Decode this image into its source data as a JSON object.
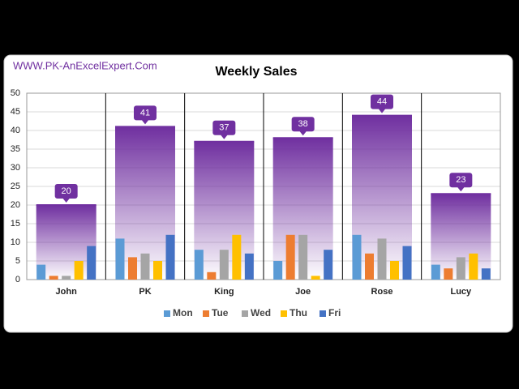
{
  "chart_data": {
    "type": "bar",
    "title": "Weekly Sales",
    "subtitle": "WWW.PK-AnExcelExpert.Com",
    "categories": [
      "John",
      "PK",
      "King",
      "Joe",
      "Rose",
      "Lucy"
    ],
    "totals": [
      20,
      41,
      37,
      38,
      44,
      23
    ],
    "total_color": "#7030a0",
    "series": [
      {
        "name": "Mon",
        "color": "#5b9bd5",
        "values": [
          4,
          11,
          8,
          5,
          12,
          4
        ]
      },
      {
        "name": "Tue",
        "color": "#ed7d31",
        "values": [
          1,
          6,
          2,
          12,
          7,
          3
        ]
      },
      {
        "name": "Wed",
        "color": "#a5a5a5",
        "values": [
          1,
          7,
          8,
          12,
          11,
          6
        ]
      },
      {
        "name": "Thu",
        "color": "#ffc000",
        "values": [
          5,
          5,
          12,
          1,
          5,
          7
        ]
      },
      {
        "name": "Fri",
        "color": "#4472c4",
        "values": [
          9,
          12,
          7,
          8,
          9,
          3
        ]
      }
    ],
    "ylim": [
      0,
      50
    ],
    "yticks": [
      0,
      5,
      10,
      15,
      20,
      25,
      30,
      35,
      40,
      45,
      50
    ],
    "grid": true,
    "legend": "bottom"
  }
}
